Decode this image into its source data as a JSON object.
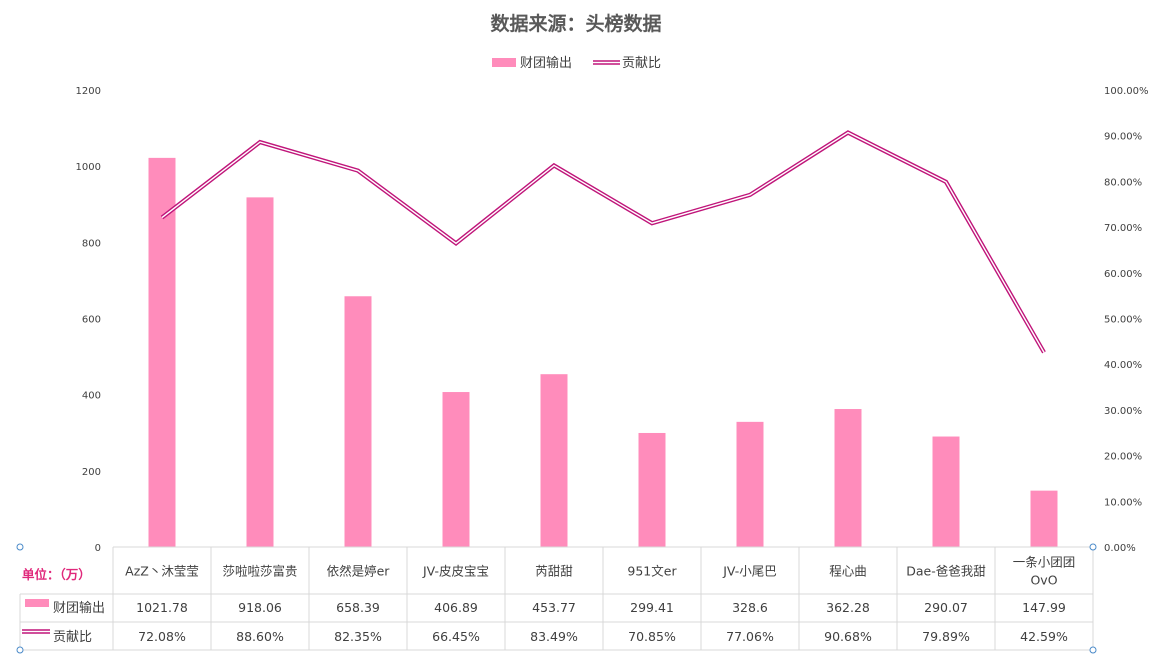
{
  "chart_data": {
    "type": "bar",
    "title": "数据来源：头榜数据",
    "categories": [
      "AzZ丶沐莹莹",
      "莎啦啦莎富贵",
      "依然是婷er",
      "JV-皮皮宝宝",
      "芮甜甜",
      "951文er",
      "JV-小尾巴",
      "程心曲",
      "Dae-爸爸我甜",
      "一条小团团OvO"
    ],
    "series": [
      {
        "name": "财团输出",
        "type": "bar",
        "axis": "left",
        "values": [
          1021.78,
          918.06,
          658.39,
          406.89,
          453.77,
          299.41,
          328.6,
          362.28,
          290.07,
          147.99
        ],
        "labels": [
          "1021.78",
          "918.06",
          "658.39",
          "406.89",
          "453.77",
          "299.41",
          "328.6",
          "362.28",
          "290.07",
          "147.99"
        ],
        "color": "#ff8cbb"
      },
      {
        "name": "贡献比",
        "type": "line",
        "axis": "right",
        "values": [
          72.08,
          88.6,
          82.35,
          66.45,
          83.49,
          70.85,
          77.06,
          90.68,
          79.89,
          42.59
        ],
        "labels": [
          "72.08%",
          "88.60%",
          "82.35%",
          "66.45%",
          "83.49%",
          "70.85%",
          "77.06%",
          "90.68%",
          "79.89%",
          "42.59%"
        ],
        "color": "#c0157a"
      }
    ],
    "y_left": {
      "min": 0,
      "max": 1200,
      "step": 200,
      "ticks": [
        "0",
        "200",
        "400",
        "600",
        "800",
        "1000",
        "1200"
      ]
    },
    "y_right": {
      "min": 0,
      "max": 100,
      "step": 10,
      "ticks": [
        "0.00%",
        "10.00%",
        "20.00%",
        "30.00%",
        "40.00%",
        "50.00%",
        "60.00%",
        "70.00%",
        "80.00%",
        "90.00%",
        "100.00%"
      ]
    },
    "grid": false,
    "legend_position": "top",
    "data_table": {
      "unit_label": "单位：（万）",
      "category_labels": [
        [
          "AzZ丶沐莹莹"
        ],
        [
          "莎啦啦莎富贵"
        ],
        [
          "依然是婷er"
        ],
        [
          "JV-皮皮宝宝"
        ],
        [
          "芮甜甜"
        ],
        [
          "951文er"
        ],
        [
          "JV-小尾巴"
        ],
        [
          "程心曲"
        ],
        [
          "Dae-爸爸我甜"
        ],
        [
          "一条小团团",
          "OvO"
        ]
      ]
    }
  },
  "colors": {
    "bar": "#ff8cbb",
    "line": "#c0157a",
    "table_border": "#d9d9d9",
    "handle": "#4a8ac9"
  }
}
